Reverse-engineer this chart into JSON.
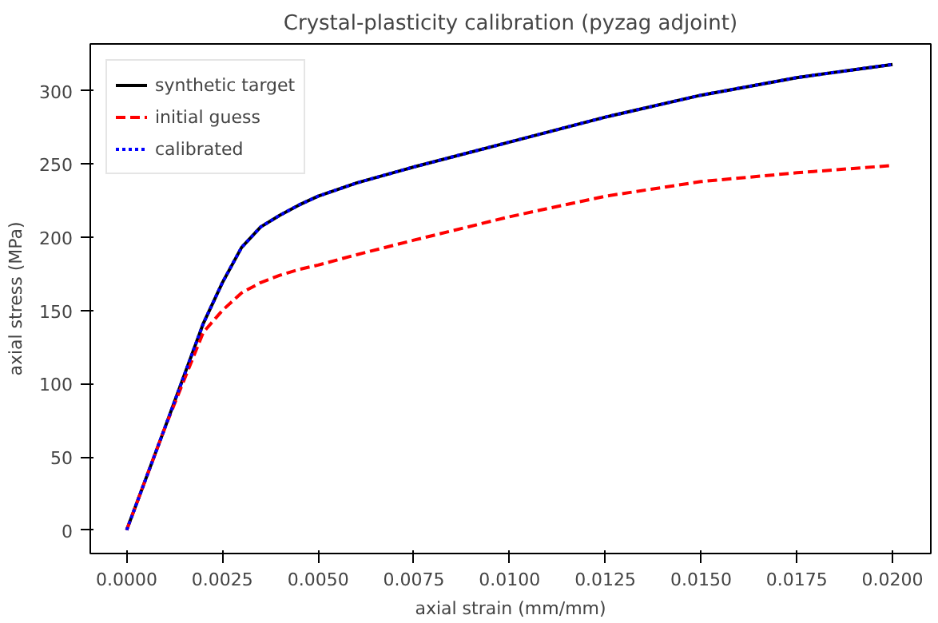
{
  "chart_data": {
    "type": "line",
    "title": "Crystal-plasticity calibration (pyzag adjoint)",
    "xlabel": "axial strain (mm/mm)",
    "ylabel": "axial stress (MPa)",
    "x": [
      0,
      0.001,
      0.002,
      0.0025,
      0.003,
      0.0035,
      0.004,
      0.0045,
      0.005,
      0.006,
      0.0075,
      0.01,
      0.0125,
      0.015,
      0.0175,
      0.02
    ],
    "series": [
      {
        "name": "synthetic target",
        "color": "#000000",
        "line_style": "solid",
        "values": [
          0,
          70,
          141,
          169,
          193,
          207,
          215,
          222,
          228,
          237,
          248,
          265,
          282,
          297,
          309,
          318
        ]
      },
      {
        "name": "initial guess",
        "color": "#ff0000",
        "line_style": "dashed",
        "values": [
          0,
          70,
          135,
          150,
          162,
          169,
          174,
          178,
          181,
          188,
          198,
          214,
          228,
          238,
          244,
          249
        ]
      },
      {
        "name": "calibrated",
        "color": "#0000ff",
        "line_style": "dotted",
        "values": [
          0,
          70,
          141,
          169,
          193,
          207,
          215,
          222,
          228,
          237,
          248,
          265,
          282,
          297,
          309,
          318
        ]
      }
    ],
    "xlim": [
      -0.00095,
      0.021
    ],
    "ylim": [
      -16,
      332
    ],
    "xticks": [
      {
        "value": 0,
        "label": "0.0000"
      },
      {
        "value": 0.0025,
        "label": "0.0025"
      },
      {
        "value": 0.005,
        "label": "0.0050"
      },
      {
        "value": 0.0075,
        "label": "0.0075"
      },
      {
        "value": 0.01,
        "label": "0.0100"
      },
      {
        "value": 0.0125,
        "label": "0.0125"
      },
      {
        "value": 0.015,
        "label": "0.0150"
      },
      {
        "value": 0.0175,
        "label": "0.0175"
      },
      {
        "value": 0.02,
        "label": "0.0200"
      }
    ],
    "yticks": [
      0,
      50,
      100,
      150,
      200,
      250,
      300
    ],
    "grid": false,
    "legend": "top left"
  }
}
